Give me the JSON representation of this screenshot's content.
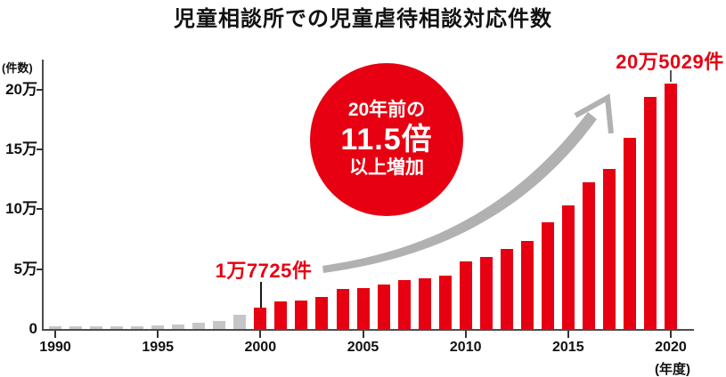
{
  "title": "児童相談所での児童虐待相談対応件数",
  "y_axis": {
    "unit_label": "(件数)"
  },
  "x_axis": {
    "unit_label": "(年度)"
  },
  "annotations": {
    "start_label": "1万7725件",
    "end_label": "20万5029件"
  },
  "badge": {
    "lines": [
      "20年前の",
      "11.5倍",
      "以上増加"
    ]
  },
  "colors": {
    "red": "#e60012",
    "gray_bar": "#c6c6c8",
    "arrow_gray": "#b1b1b1",
    "axis": "#4d4d4d",
    "text": "#111111"
  },
  "chart_data": {
    "type": "bar",
    "title": "児童相談所での児童虐待相談対応件数",
    "ylabel": "(件数)",
    "xlabel": "(年度)",
    "ylim": [
      0,
      220000
    ],
    "grid": false,
    "legend": "none",
    "x": [
      1990,
      1991,
      1992,
      1993,
      1994,
      1995,
      1996,
      1997,
      1998,
      1999,
      2000,
      2001,
      2002,
      2003,
      2004,
      2005,
      2006,
      2007,
      2008,
      2009,
      2010,
      2011,
      2012,
      2013,
      2014,
      2015,
      2016,
      2017,
      2018,
      2019,
      2020
    ],
    "values": [
      1101,
      1171,
      1372,
      1611,
      1961,
      2722,
      4102,
      5352,
      6932,
      11631,
      17725,
      23274,
      23738,
      26569,
      33408,
      34472,
      37323,
      40639,
      42664,
      44211,
      56384,
      59919,
      66701,
      73802,
      88931,
      103286,
      122575,
      133778,
      159838,
      193780,
      205029
    ],
    "highlight_from_year": 2000,
    "labeled_points": [
      {
        "year": 2000,
        "label": "1万7725件",
        "value": 17725
      },
      {
        "year": 2020,
        "label": "20万5029件",
        "value": 205029
      }
    ],
    "y_ticks": [
      {
        "label": "20万",
        "value": 200000
      },
      {
        "label": "15万",
        "value": 150000
      },
      {
        "label": "10万",
        "value": 100000
      },
      {
        "label": "5万",
        "value": 50000
      },
      {
        "label": "0",
        "value": 0
      }
    ],
    "x_tick_years": [
      1990,
      1995,
      2000,
      2005,
      2010,
      2015,
      2020
    ]
  }
}
